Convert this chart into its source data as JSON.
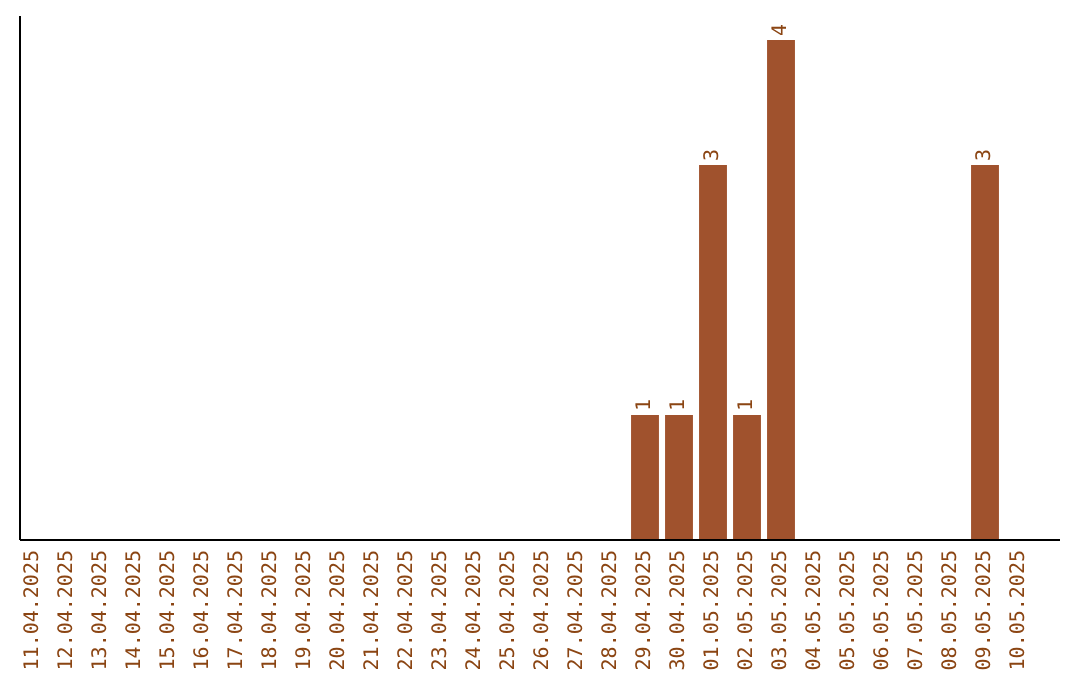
{
  "chart_data": {
    "type": "bar",
    "color": "#a0522d",
    "categories": [
      "11.04.2025",
      "12.04.2025",
      "13.04.2025",
      "14.04.2025",
      "15.04.2025",
      "16.04.2025",
      "17.04.2025",
      "18.04.2025",
      "19.04.2025",
      "20.04.2025",
      "21.04.2025",
      "22.04.2025",
      "23.04.2025",
      "24.04.2025",
      "25.04.2025",
      "26.04.2025",
      "27.04.2025",
      "28.04.2025",
      "29.04.2025",
      "30.04.2025",
      "01.05.2025",
      "02.05.2025",
      "03.05.2025",
      "04.05.2025",
      "05.05.2025",
      "06.05.2025",
      "07.05.2025",
      "08.05.2025",
      "09.05.2025",
      "10.05.2025"
    ],
    "values": [
      null,
      null,
      null,
      null,
      null,
      null,
      null,
      null,
      null,
      null,
      null,
      null,
      null,
      null,
      null,
      null,
      null,
      null,
      1,
      1,
      3,
      1,
      4,
      null,
      null,
      null,
      null,
      null,
      3,
      null
    ],
    "value_labels": [
      null,
      null,
      null,
      null,
      null,
      null,
      null,
      null,
      null,
      null,
      null,
      null,
      null,
      null,
      null,
      null,
      null,
      null,
      "1",
      "1",
      "3",
      "1",
      "4",
      null,
      null,
      null,
      null,
      null,
      "3",
      null
    ],
    "tick_labels": "x"
  }
}
